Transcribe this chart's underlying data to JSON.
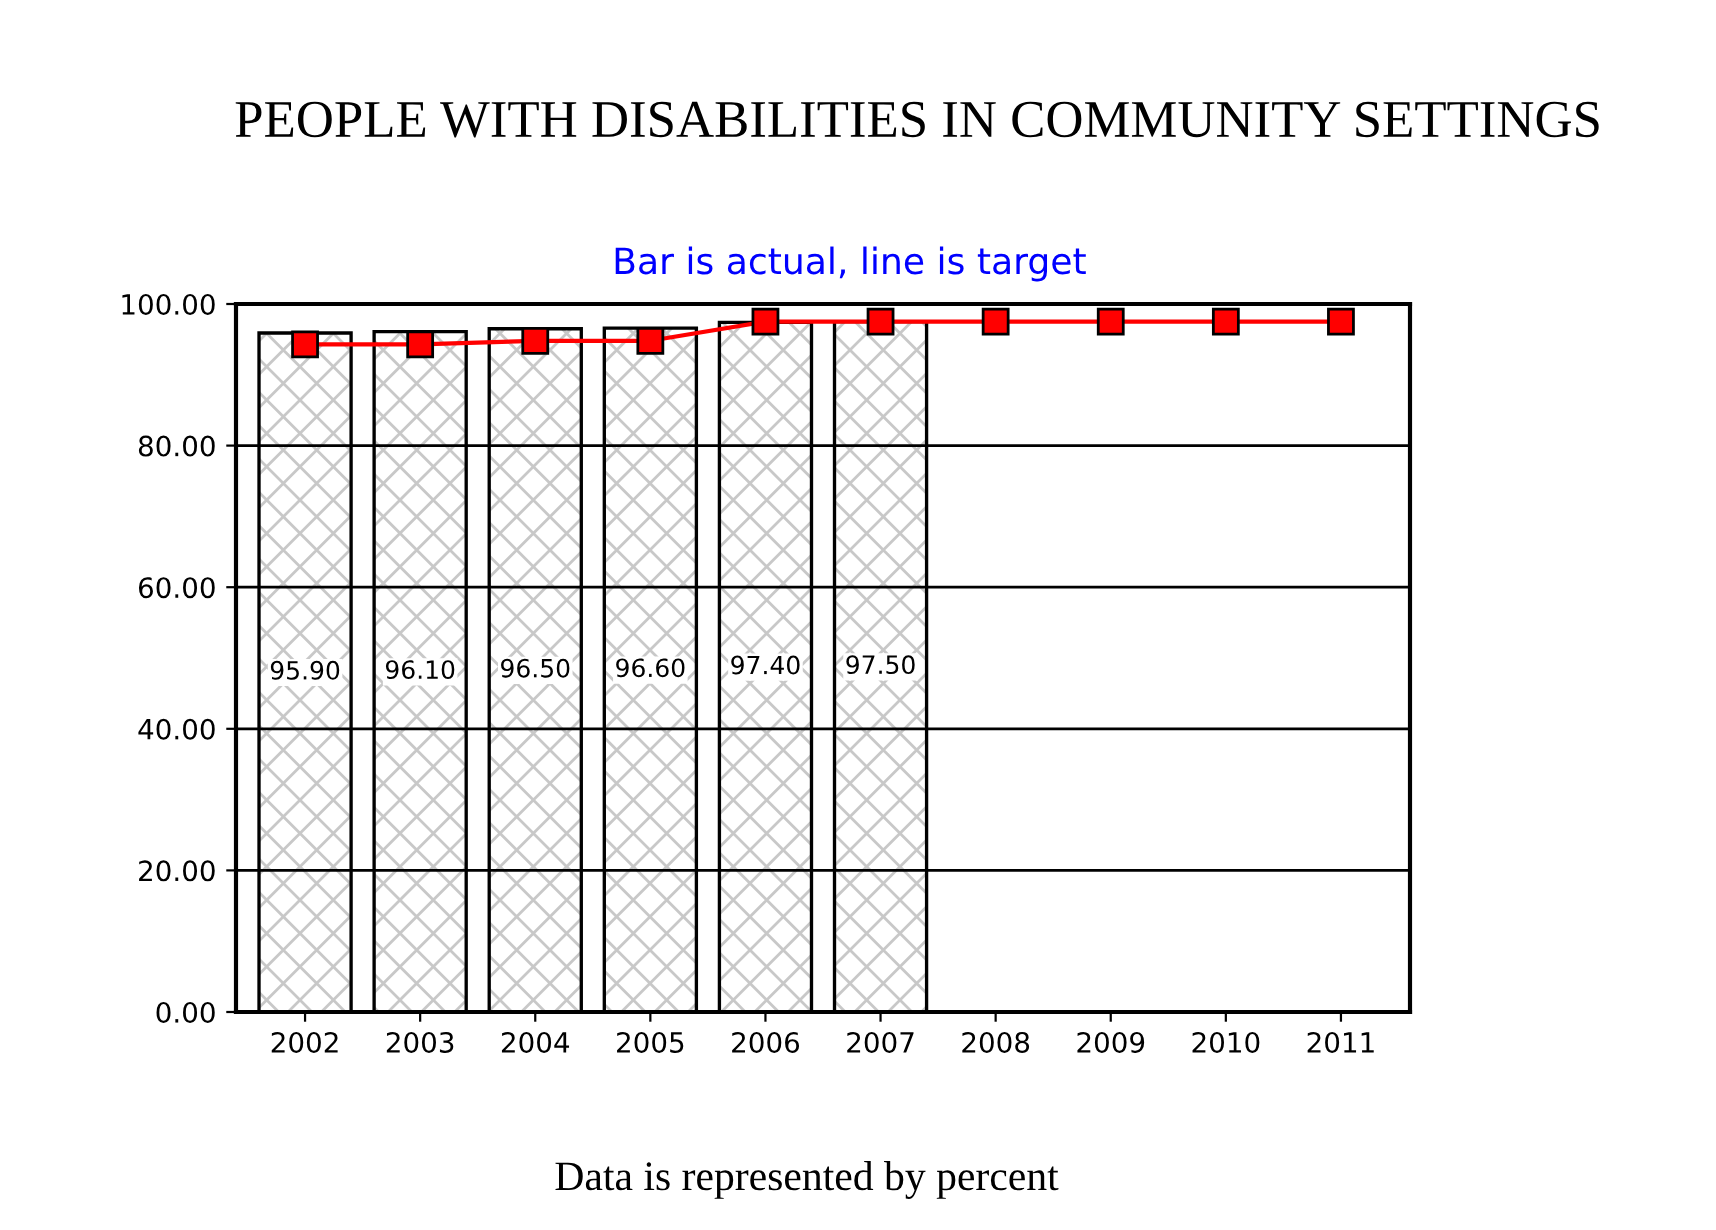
{
  "chart_data": {
    "type": "bar",
    "title": "PEOPLE WITH DISABILITIES IN COMMUNITY SETTINGS",
    "subtitle": "Bar is actual, line is target",
    "categories": [
      "2002",
      "2003",
      "2004",
      "2005",
      "2006",
      "2007",
      "2008",
      "2009",
      "2010",
      "2011"
    ],
    "series": [
      {
        "color": "#000000",
        "values": [
          95.9,
          96.1,
          96.5,
          96.6,
          97.4,
          97.5,
          null,
          null,
          null,
          null
        ],
        "value_labels": [
          "95.90",
          "96.10",
          "96.50",
          "96.60",
          "97.40",
          "97.50",
          null,
          null,
          null,
          null
        ]
      },
      {
        "type": "line",
        "color": "#ff0000",
        "marker": "square",
        "values": [
          94.3,
          94.3,
          94.8,
          94.8,
          97.5,
          97.5,
          97.5,
          97.5,
          97.5,
          97.5
        ]
      }
    ],
    "ylim": [
      0,
      100
    ],
    "yticks": [
      {
        "value": 0,
        "label": "0.00"
      },
      {
        "value": 20,
        "label": "20.00"
      },
      {
        "value": 40,
        "label": "40.00"
      },
      {
        "value": 60,
        "label": "60.00"
      },
      {
        "value": 80,
        "label": "80.00"
      },
      {
        "value": 100,
        "label": "100.00"
      }
    ],
    "grid": "y",
    "legend": false,
    "annotations": [
      "Data is represented by percent"
    ]
  }
}
